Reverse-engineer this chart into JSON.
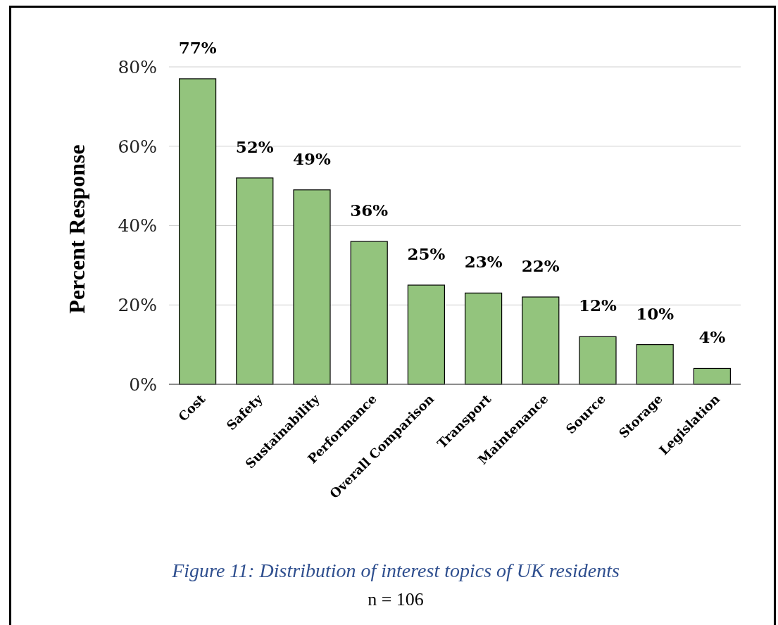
{
  "chart_data": {
    "type": "bar",
    "ylabel": "Percent Response",
    "categories": [
      "Cost",
      "Safety",
      "Sustainability",
      "Performance",
      "Overall Comparison",
      "Transport",
      "Maintenance",
      "Source",
      "Storage",
      "Legislation"
    ],
    "values": [
      77,
      52,
      49,
      36,
      25,
      23,
      22,
      12,
      10,
      4
    ],
    "value_labels": [
      "77%",
      "52%",
      "49%",
      "36%",
      "25%",
      "23%",
      "22%",
      "12%",
      "10%",
      "4%"
    ],
    "color": "#93c47d",
    "ylim": [
      0,
      80
    ],
    "yticks": [
      {
        "value": 0,
        "label": "0%"
      },
      {
        "value": 20,
        "label": "20%"
      },
      {
        "value": 40,
        "label": "40%"
      },
      {
        "value": 60,
        "label": "60%"
      },
      {
        "value": 80,
        "label": "80%"
      }
    ],
    "grid": "y",
    "annotations": [
      "Figure 11: Distribution of interest topics of UK residents",
      "n = 106"
    ]
  }
}
